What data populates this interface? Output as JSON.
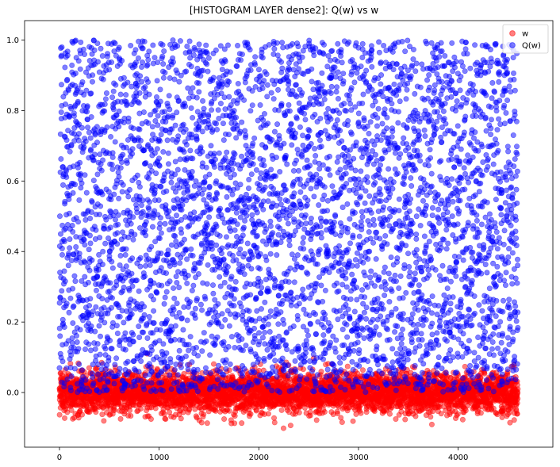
{
  "chart_data": {
    "type": "scatter",
    "title": "[HISTOGRAM LAYER dense2]: Q(w) vs w",
    "xlabel": "",
    "ylabel": "",
    "xlim": [
      -350,
      4950
    ],
    "ylim": [
      -0.155,
      1.055
    ],
    "xticks": [
      0,
      1000,
      2000,
      3000,
      4000
    ],
    "yticks": [
      -0.0,
      0.2,
      0.4,
      0.6,
      0.8,
      1.0
    ],
    "xtick_labels": [
      "0",
      "1000",
      "2000",
      "3000",
      "4000"
    ],
    "ytick_labels": [
      "0.0",
      "0.2",
      "0.4",
      "0.6",
      "0.8",
      "1.0"
    ],
    "grid": false,
    "legend_position": "top-right",
    "n_points": 4600,
    "series": [
      {
        "name": "w",
        "color": "#ff0000",
        "alpha": 0.5,
        "distribution": "normal",
        "mean": 0.0,
        "std": 0.028,
        "x_range": [
          0,
          4600
        ]
      },
      {
        "name": "Q(w)",
        "color": "#0000ff",
        "alpha": 0.5,
        "distribution": "uniform",
        "y_range": [
          0.0,
          1.0
        ],
        "x_range": [
          0,
          4600
        ]
      }
    ]
  }
}
